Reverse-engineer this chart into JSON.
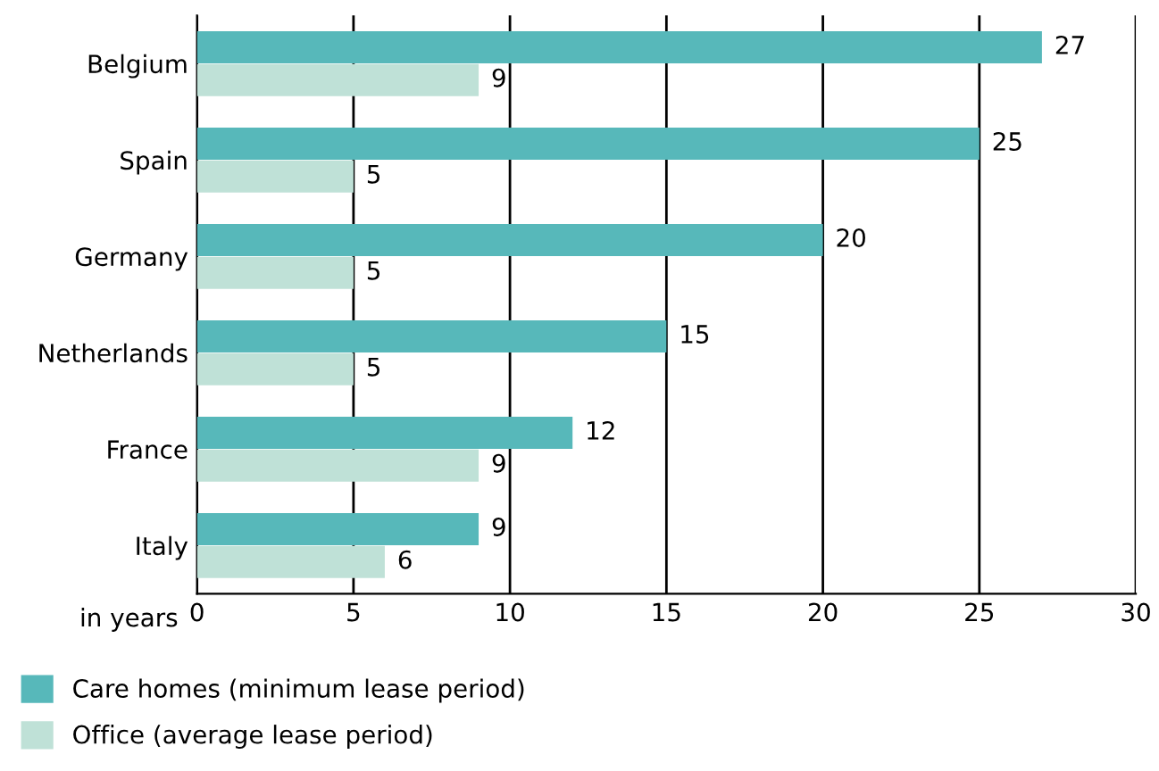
{
  "chart_data": {
    "type": "bar",
    "orientation": "horizontal",
    "categories": [
      "Belgium",
      "Spain",
      "Germany",
      "Netherlands",
      "France",
      "Italy"
    ],
    "series": [
      {
        "name": "Care homes (minimum lease period)",
        "color": "#57b8ba",
        "values": [
          27,
          25,
          20,
          15,
          12,
          9
        ]
      },
      {
        "name": "Office (average lease period)",
        "color": "#bfe1d7",
        "values": [
          9,
          5,
          5,
          5,
          9,
          6
        ]
      }
    ],
    "xlabel": "in years",
    "xlim": [
      0,
      30
    ],
    "xticks": [
      0,
      5,
      10,
      15,
      20,
      25,
      30
    ],
    "grid": "x",
    "legend": "bottom left",
    "data_labels": true
  }
}
